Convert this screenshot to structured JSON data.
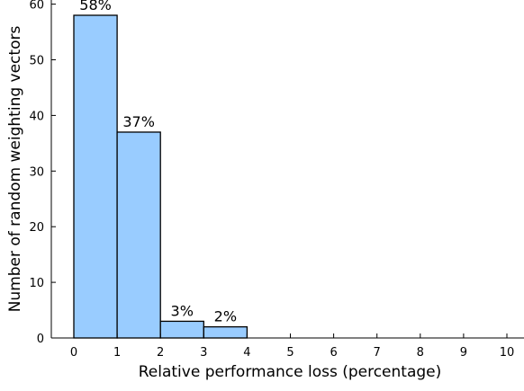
{
  "chart_data": {
    "type": "bar",
    "title": "",
    "xlabel": "Relative performance loss (percentage)",
    "ylabel": "Number of random weighting vectors",
    "bins": [
      {
        "x0": 0,
        "x1": 1,
        "value": 58,
        "label": "58%"
      },
      {
        "x0": 1,
        "x1": 2,
        "value": 37,
        "label": "37%"
      },
      {
        "x0": 2,
        "x1": 3,
        "value": 3,
        "label": "3%"
      },
      {
        "x0": 3,
        "x1": 4,
        "value": 2,
        "label": "2%"
      }
    ],
    "xlim": [
      -0.5,
      10.4
    ],
    "ylim": [
      0,
      64
    ],
    "xticks": [
      "0",
      "1",
      "2",
      "3",
      "4",
      "5",
      "6",
      "7",
      "8",
      "9",
      "10"
    ],
    "yticks": [
      "0",
      "10",
      "20",
      "30",
      "40",
      "50",
      "60"
    ],
    "bar_color": "#99ccff",
    "edge_color": "#000000",
    "grid": false,
    "legend": "none"
  }
}
